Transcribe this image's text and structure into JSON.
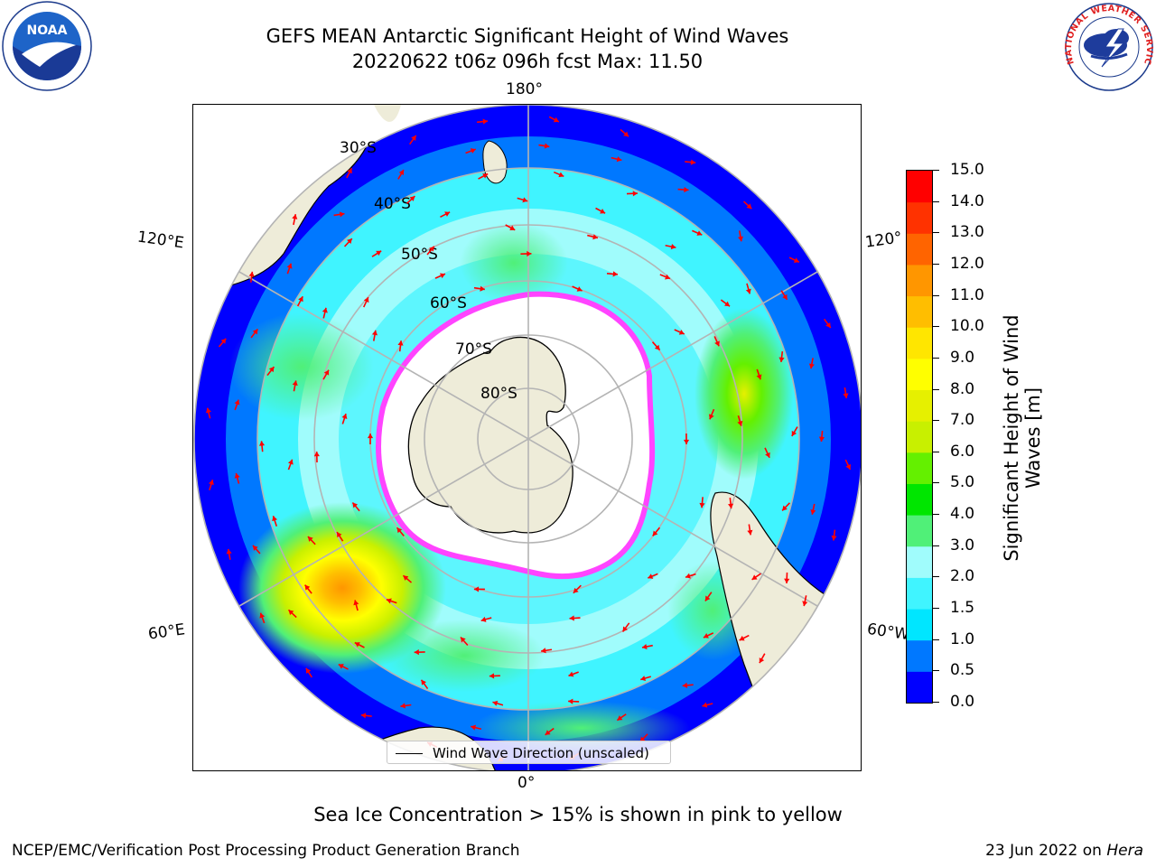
{
  "title_line1": "GEFS MEAN Antarctic Significant Height of Wind Waves",
  "title_line2": "20220622 t06z 096h fcst   Max: 11.50",
  "logos": {
    "noaa": {
      "name": "noaa-logo",
      "text": "NOAA"
    },
    "nws": {
      "name": "national-weather-service-logo",
      "text": "NATIONAL WEATHER SERVICE"
    }
  },
  "map": {
    "projection": "south-polar-stereographic",
    "longitude_labels": {
      "top": "180°",
      "bottom": "0°",
      "upper_left": "120°E",
      "upper_right": "120°",
      "lower_left": "60°E",
      "lower_right": "60°W"
    },
    "latitude_labels": [
      "30°S",
      "40°S",
      "50°S",
      "60°S",
      "70°S",
      "80°S"
    ],
    "colors": {
      "land": "#eeecd9",
      "sea_ice": "#ffffff",
      "ice_edge": "#ff44ff",
      "arrows": "#ff0000",
      "gridlines": "#b4b4b4"
    }
  },
  "colorbar": {
    "label": "Significant Height of Wind Waves [m]",
    "ticks": [
      "0.0",
      "0.5",
      "1.0",
      "1.5",
      "2.0",
      "3.0",
      "4.0",
      "5.0",
      "6.0",
      "7.0",
      "8.0",
      "9.0",
      "10.0",
      "11.0",
      "12.0",
      "13.0",
      "14.0",
      "15.0"
    ],
    "colors": [
      "#0000ff",
      "#0078ff",
      "#00e6ff",
      "#40f4ff",
      "#a0fcfc",
      "#50f078",
      "#00e600",
      "#64f000",
      "#c8f000",
      "#e6f000",
      "#ffff00",
      "#ffe600",
      "#ffbe00",
      "#ff9600",
      "#ff6400",
      "#ff3200",
      "#ff0000"
    ]
  },
  "legend": {
    "label": "Wind Wave Direction (unscaled)"
  },
  "subtitle": "Sea Ice Concentration > 15% is shown in pink to yellow",
  "footer": {
    "left": "NCEP/EMC/Verification Post Processing Product Generation Branch",
    "date": "23 Jun 2022 on ",
    "machine": "Hera"
  }
}
